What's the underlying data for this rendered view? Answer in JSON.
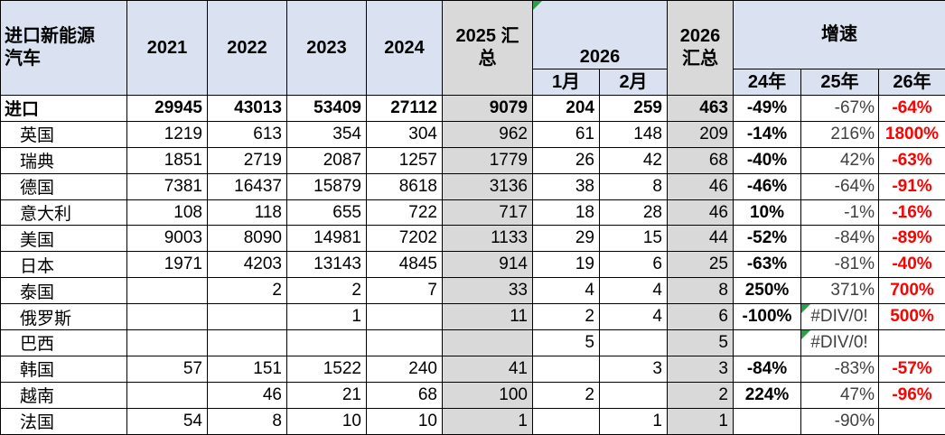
{
  "colors": {
    "header_bg": "#DAE1F1",
    "total_bg": "#D9D9D9",
    "negative_red": "#FF0000",
    "error_green": "#2E9E48",
    "secondary_text": "#404040",
    "border": "#000000"
  },
  "icons": {
    "error_indicator": "green-corner-triangle"
  },
  "header": {
    "corner": "进口新能源\n汽车",
    "years": [
      "2021",
      "2022",
      "2023",
      "2024"
    ],
    "total_2025": "2025 汇\n总",
    "group_2026": "2026",
    "months": [
      "1月",
      "2月"
    ],
    "total_2026": "2026\n汇总",
    "growth": "增速",
    "growth_years": [
      "24年",
      "25年",
      "26年"
    ]
  },
  "column_keys": [
    "2021",
    "2022",
    "2023",
    "2024",
    "2025-total",
    "2026-jan",
    "2026-feb",
    "2026-total",
    "growth-24",
    "growth-25",
    "growth-26"
  ],
  "rows": [
    {
      "name": "进口",
      "bold": true,
      "values": [
        "29945",
        "43013",
        "53409",
        "27112",
        "9079",
        "204",
        "259",
        "463",
        "-49%",
        "-67%",
        "-64%"
      ]
    },
    {
      "name": "英国",
      "values": [
        "1219",
        "613",
        "354",
        "304",
        "962",
        "61",
        "148",
        "209",
        "-14%",
        "216%",
        "1800%"
      ]
    },
    {
      "name": "瑞典",
      "values": [
        "1851",
        "2719",
        "2087",
        "1257",
        "1779",
        "26",
        "42",
        "68",
        "-40%",
        "42%",
        "-63%"
      ]
    },
    {
      "name": "德国",
      "values": [
        "7381",
        "16437",
        "15879",
        "8618",
        "3136",
        "38",
        "8",
        "46",
        "-46%",
        "-64%",
        "-91%"
      ]
    },
    {
      "name": "意大利",
      "values": [
        "108",
        "118",
        "655",
        "722",
        "717",
        "18",
        "28",
        "46",
        "10%",
        "-1%",
        "-16%"
      ]
    },
    {
      "name": "美国",
      "values": [
        "9003",
        "8090",
        "14981",
        "7202",
        "1133",
        "29",
        "15",
        "44",
        "-52%",
        "-84%",
        "-89%"
      ]
    },
    {
      "name": "日本",
      "values": [
        "1971",
        "4203",
        "13143",
        "4845",
        "914",
        "19",
        "6",
        "25",
        "-63%",
        "-81%",
        "-40%"
      ]
    },
    {
      "name": "泰国",
      "values": [
        "",
        "2",
        "2",
        "7",
        "33",
        "4",
        "4",
        "8",
        "250%",
        "371%",
        "700%"
      ]
    },
    {
      "name": "俄罗斯",
      "error_cols": [
        9
      ],
      "values": [
        "",
        "",
        "1",
        "",
        "11",
        "2",
        "4",
        "6",
        "-100%",
        "#DIV/0!",
        "500%"
      ]
    },
    {
      "name": "巴西",
      "error_cols": [
        9
      ],
      "values": [
        "",
        "",
        "",
        "",
        "",
        "5",
        "",
        "5",
        "",
        "#DIV/0!",
        ""
      ]
    },
    {
      "name": "韩国",
      "values": [
        "57",
        "151",
        "1522",
        "240",
        "41",
        "",
        "3",
        "3",
        "-84%",
        "-83%",
        "-57%"
      ]
    },
    {
      "name": "越南",
      "values": [
        "",
        "46",
        "21",
        "68",
        "100",
        "2",
        "",
        "2",
        "224%",
        "47%",
        "-96%"
      ]
    },
    {
      "name": "法国",
      "values": [
        "54",
        "8",
        "10",
        "10",
        "1",
        "",
        "1",
        "1",
        "",
        "-90%",
        ""
      ]
    }
  ]
}
